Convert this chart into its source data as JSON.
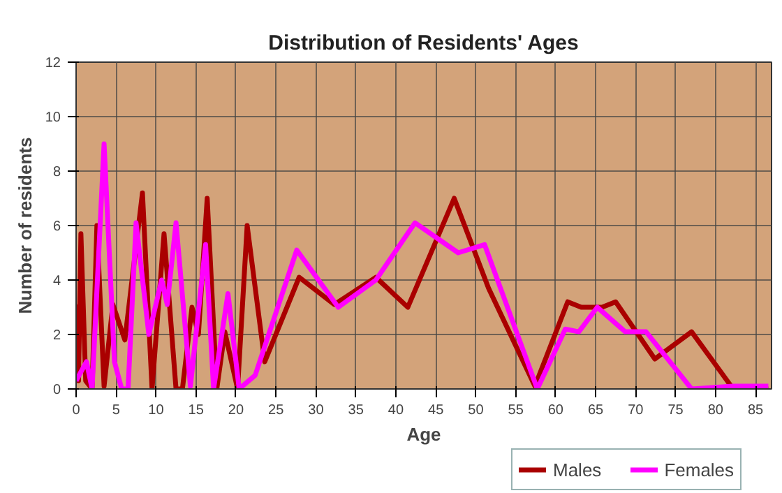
{
  "chart_data": {
    "type": "line",
    "title": "Distribution of Residents' Ages",
    "xlabel": "Age",
    "ylabel": "Number of residents",
    "xlim": [
      0,
      87
    ],
    "ylim": [
      0,
      12
    ],
    "xticks": [
      0,
      5,
      10,
      15,
      20,
      25,
      30,
      35,
      40,
      45,
      50,
      55,
      60,
      65,
      70,
      75,
      80,
      85
    ],
    "yticks": [
      0,
      2,
      4,
      6,
      8,
      10,
      12
    ],
    "grid": true,
    "legend": "bottom",
    "line_style": "solid",
    "marker": "none",
    "series": [
      {
        "name": "Males",
        "color": "#aa0000",
        "x": [
          0,
          0.3,
          0.6,
          1.2,
          2,
          2.6,
          3.5,
          4.6,
          6.1,
          8.3,
          9.5,
          11,
          12.5,
          13.3,
          14.5,
          15.3,
          16.4,
          17.6,
          18.6,
          20.2,
          21.4,
          23.6,
          27.9,
          32.3,
          37.5,
          41.5,
          47.3,
          51.6,
          57.4,
          61.5,
          63.2,
          65.8,
          67.5,
          72.4,
          77,
          82.2,
          86.6
        ],
        "values": [
          3.1,
          0.3,
          5.7,
          0.3,
          0,
          6,
          0.1,
          3.1,
          1.8,
          7.2,
          0,
          5.7,
          0,
          0,
          3,
          2,
          7,
          0,
          2.1,
          0,
          6,
          1,
          4.1,
          3.1,
          4.1,
          3,
          7,
          3.7,
          0.1,
          3.2,
          3,
          3,
          3.2,
          1.1,
          2.1,
          0,
          0
        ]
      },
      {
        "name": "Females",
        "color": "#ff00ff",
        "x": [
          0,
          1.3,
          2,
          3.5,
          4.8,
          5.7,
          6.5,
          7.5,
          9.1,
          10.7,
          11.4,
          12.5,
          14.3,
          16.2,
          17.2,
          19,
          20.4,
          22.4,
          27.6,
          32.8,
          37.5,
          42.4,
          47.8,
          51.1,
          57.7,
          61.2,
          62.9,
          65.2,
          68.7,
          71.3,
          77,
          82.2,
          86.6
        ],
        "values": [
          0.3,
          1,
          0,
          9,
          1,
          0,
          0,
          6.1,
          2,
          4,
          3.1,
          6.1,
          0.1,
          5.3,
          0,
          3.5,
          0,
          0.5,
          5.1,
          3,
          4,
          6.1,
          5,
          5.3,
          0,
          2.2,
          2.1,
          3,
          2.1,
          2.1,
          0,
          0.1,
          0.1
        ]
      }
    ]
  }
}
